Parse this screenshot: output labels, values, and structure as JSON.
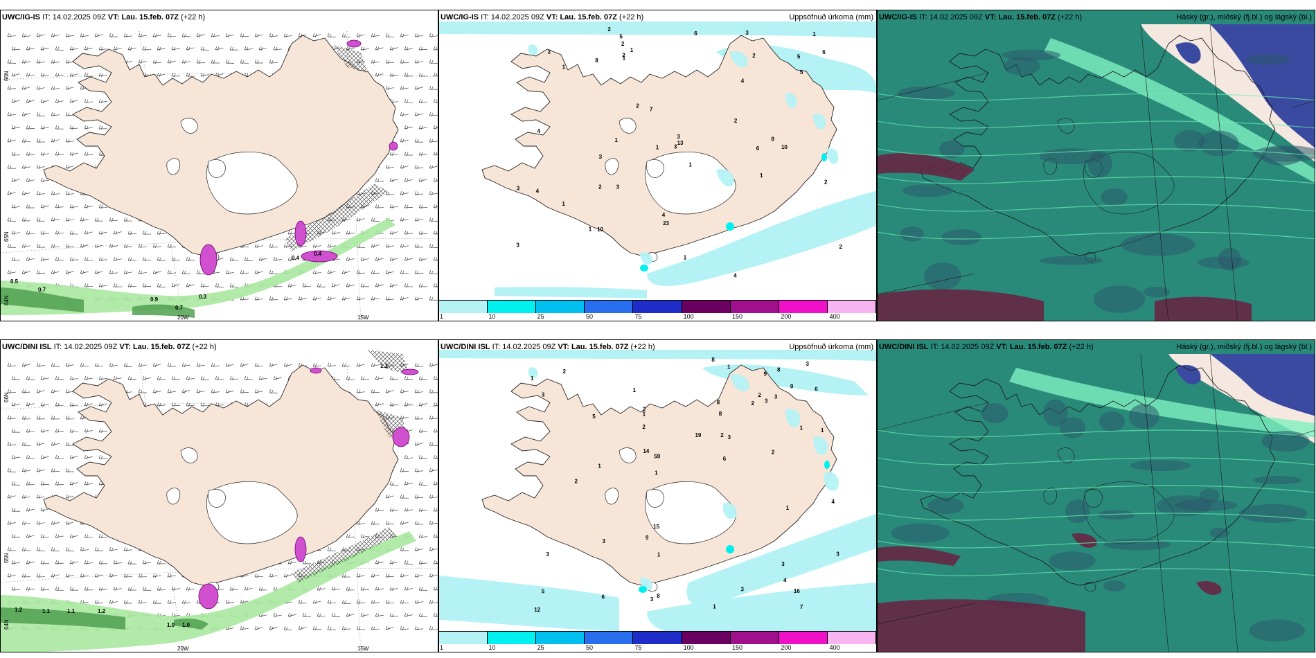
{
  "panels": [
    {
      "id": "ig-wind",
      "model": "UWC/IG-IS",
      "it_label": "IT:",
      "it_value": "14.02.2025 09Z",
      "vt_label": "VT:",
      "vt_value": "Lau. 15.feb. 07Z",
      "lead": "(+22 h)",
      "right_title": "",
      "lat_labels": [
        "66N",
        "64N",
        "65N"
      ],
      "lon_labels": [
        "20W",
        "15W"
      ],
      "values": [
        "0.5",
        "0.7",
        "0.9",
        "0.7",
        "0.3",
        "0.4",
        "0.4"
      ]
    },
    {
      "id": "ig-precip",
      "model": "UWC/IG-IS",
      "it_label": "IT:",
      "it_value": "14.02.2025 09Z",
      "vt_label": "VT:",
      "vt_value": "Lau. 15.feb. 07Z",
      "lead": "(+22 h)",
      "right_title": "Uppsöfnuð úrkoma (mm)",
      "values": [
        "3",
        "3",
        "2",
        "1",
        "4",
        "5",
        "3",
        "2",
        "1",
        "1",
        "3",
        "4",
        "2",
        "2",
        "1",
        "3",
        "8",
        "2",
        "3",
        "1",
        "6",
        "1",
        "1",
        "1",
        "2",
        "7",
        "10",
        "1",
        "2",
        "6",
        "10",
        "2",
        "1",
        "5",
        "3",
        "1",
        "4",
        "2",
        "23",
        "4",
        "2",
        "4",
        "5",
        "13",
        "6",
        "8"
      ]
    },
    {
      "id": "ig-cloud",
      "model": "UWC/IG-IS",
      "it_label": "IT:",
      "it_value": "14.02.2025 09Z",
      "vt_label": "VT:",
      "vt_value": "Lau. 15.feb. 07Z",
      "lead": "(+22 h)",
      "right_title": "Háský (gr.), miðský (fj.bl.) og lágský (bl.)"
    },
    {
      "id": "dini-wind",
      "model": "UWC/DINI ISL",
      "it_label": "IT:",
      "it_value": "14.02.2025 09Z",
      "vt_label": "VT:",
      "vt_value": "Lau. 15.feb. 07Z",
      "lead": "(+22 h)",
      "right_title": "",
      "lat_labels": [
        "66N",
        "64N",
        "65N"
      ],
      "lon_labels": [
        "20W",
        "15W"
      ],
      "values": [
        "1.2",
        "1.1",
        "1.1",
        "1.2",
        "1.0",
        "1.0",
        "1.1"
      ]
    },
    {
      "id": "dini-precip",
      "model": "UWC/DINI ISL",
      "it_label": "IT:",
      "it_value": "14.02.2025 09Z",
      "vt_label": "VT:",
      "vt_value": "Lau. 15.feb. 07Z",
      "lead": "(+22 h)",
      "right_title": "Uppsöfnuð úrkoma (mm)",
      "values": [
        "1",
        "2",
        "1",
        "3",
        "5",
        "8",
        "2",
        "3",
        "3",
        "1",
        "3",
        "6",
        "1",
        "1",
        "2",
        "1",
        "3",
        "2",
        "2",
        "12",
        "1",
        "2",
        "3",
        "19",
        "16",
        "1",
        "8",
        "9",
        "3",
        "2",
        "1",
        "1",
        "1",
        "3",
        "8",
        "9",
        "15",
        "14",
        "5",
        "6",
        "4",
        "2",
        "3",
        "7",
        "4",
        "6",
        "8",
        "8",
        "9",
        "3",
        "3",
        "59"
      ]
    },
    {
      "id": "dini-cloud",
      "model": "UWC/DINI ISL",
      "it_label": "IT:",
      "it_value": "14.02.2025 09Z",
      "vt_label": "VT:",
      "vt_value": "Lau. 15.feb. 07Z",
      "lead": "(+22 h)",
      "right_title": "Háský (gr.), miðský (fj.bl.) og lágský (bl.)"
    }
  ],
  "precip_scale": {
    "ticks": [
      "1",
      "10",
      "25",
      "50",
      "75",
      "100",
      "150",
      "200",
      "400"
    ],
    "colors": [
      "#b4f2f6",
      "#00f0f0",
      "#00c0f0",
      "#2a6ef0",
      "#1e2cc8",
      "#6a0060",
      "#a0108c",
      "#f010c8",
      "#f8b4f0"
    ]
  },
  "colors": {
    "land": "#f7e6d7",
    "glacier": "#ffffff",
    "ocean": "#ffffff",
    "precip_light": "#b4f2f6",
    "precip_mid": "#00f0f0",
    "wind_green": "#a8e8a0",
    "wind_dark_green": "#50a050",
    "snow_magenta": "#d050d0",
    "cloud_high": "#2a8a7a",
    "cloud_mid": "#3a4aa0",
    "cloud_low": "#6a2040"
  }
}
